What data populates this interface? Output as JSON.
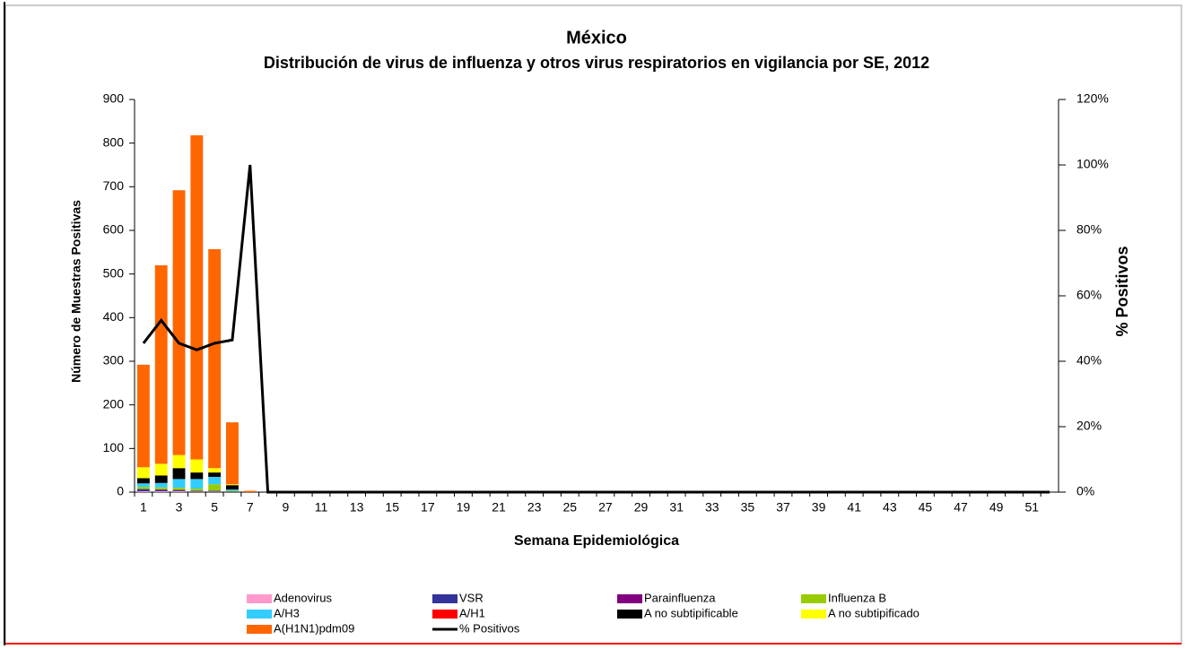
{
  "chart_data": {
    "type": "bar",
    "title": "México",
    "subtitle": "Distribución de virus de influenza y otros virus respiratorios en vigilancia por SE, 2012",
    "x_label": "Semana Epidemiológica",
    "y_label": "Número de Muestras Positivas",
    "y2_label": "% Positivos",
    "stacked": true,
    "legend": "bottom",
    "categories": [
      "1",
      null,
      "3",
      null,
      "5",
      null,
      "7",
      null,
      "9",
      null,
      "11",
      null,
      "13",
      null,
      "15",
      null,
      "17",
      null,
      "19",
      null,
      "21",
      null,
      "23",
      null,
      "25",
      null,
      "27",
      null,
      "29",
      null,
      "31",
      null,
      "33",
      null,
      "35",
      null,
      "37",
      null,
      "39",
      null,
      "41",
      null,
      "43",
      null,
      "45",
      null,
      "47",
      null,
      "49",
      null,
      "51",
      null
    ],
    "ylim": [
      0,
      900
    ],
    "yticks": [
      0,
      100,
      200,
      300,
      400,
      500,
      600,
      700,
      800,
      900
    ],
    "y2lim": [
      0,
      120
    ],
    "y2ticks": [
      {
        "value": 0,
        "label": "0%"
      },
      {
        "value": 20,
        "label": "20%"
      },
      {
        "value": 40,
        "label": "40%"
      },
      {
        "value": 60,
        "label": "60%"
      },
      {
        "value": 80,
        "label": "80%"
      },
      {
        "value": 100,
        "label": "100%"
      },
      {
        "value": 120,
        "label": "120%"
      }
    ],
    "series": [
      {
        "name": "Adenovirus",
        "color": "#ff99cc",
        "values": [
          2,
          2,
          2,
          1,
          1,
          0,
          0,
          0,
          0,
          0,
          0,
          0,
          0,
          0,
          0,
          0,
          0,
          0,
          0,
          0,
          0,
          0,
          0,
          0,
          0,
          0,
          0,
          0,
          0,
          0,
          0,
          0,
          0,
          0,
          0,
          0,
          0,
          0,
          0,
          0,
          0,
          0,
          0,
          0,
          0,
          0,
          0,
          0,
          0,
          0,
          0,
          0
        ]
      },
      {
        "name": "VSR",
        "color": "#333399",
        "values": [
          5,
          3,
          2,
          2,
          2,
          1,
          0,
          0,
          0,
          0,
          0,
          0,
          0,
          0,
          0,
          0,
          0,
          0,
          0,
          0,
          0,
          0,
          0,
          0,
          0,
          0,
          0,
          0,
          0,
          0,
          0,
          0,
          0,
          0,
          0,
          0,
          0,
          0,
          0,
          0,
          0,
          0,
          0,
          0,
          0,
          0,
          0,
          0,
          0,
          0,
          0,
          0
        ]
      },
      {
        "name": "Parainfluenza",
        "color": "#800080",
        "values": [
          0,
          1,
          1,
          0,
          0,
          0,
          0,
          0,
          0,
          0,
          0,
          0,
          0,
          0,
          0,
          0,
          0,
          0,
          0,
          0,
          0,
          0,
          0,
          0,
          0,
          0,
          0,
          0,
          0,
          0,
          0,
          0,
          0,
          0,
          0,
          0,
          0,
          0,
          0,
          0,
          0,
          0,
          0,
          0,
          0,
          0,
          0,
          0,
          0,
          0,
          0,
          0
        ]
      },
      {
        "name": "Influenza  B",
        "color": "#99cc00",
        "values": [
          5,
          5,
          5,
          5,
          15,
          2,
          0,
          0,
          0,
          0,
          0,
          0,
          0,
          0,
          0,
          0,
          0,
          0,
          0,
          0,
          0,
          0,
          0,
          0,
          0,
          0,
          0,
          0,
          0,
          0,
          0,
          0,
          0,
          0,
          0,
          0,
          0,
          0,
          0,
          0,
          0,
          0,
          0,
          0,
          0,
          0,
          0,
          0,
          0,
          0,
          0,
          0
        ]
      },
      {
        "name": "A/H3",
        "color": "#33ccff",
        "values": [
          8,
          10,
          20,
          22,
          17,
          3,
          0,
          0,
          0,
          0,
          0,
          0,
          0,
          0,
          0,
          0,
          0,
          0,
          0,
          0,
          0,
          0,
          0,
          0,
          0,
          0,
          0,
          0,
          0,
          0,
          0,
          0,
          0,
          0,
          0,
          0,
          0,
          0,
          0,
          0,
          0,
          0,
          0,
          0,
          0,
          0,
          0,
          0,
          0,
          0,
          0,
          0
        ]
      },
      {
        "name": "A/H1",
        "color": "#ff0000",
        "values": [
          0,
          0,
          0,
          0,
          0,
          0,
          0,
          0,
          0,
          0,
          0,
          0,
          0,
          0,
          0,
          0,
          0,
          0,
          0,
          0,
          0,
          0,
          0,
          0,
          0,
          0,
          0,
          0,
          0,
          0,
          0,
          0,
          0,
          0,
          0,
          0,
          0,
          0,
          0,
          0,
          0,
          0,
          0,
          0,
          0,
          0,
          0,
          0,
          0,
          0,
          0,
          0
        ]
      },
      {
        "name": "A no subtipificable",
        "color": "#000000",
        "values": [
          12,
          17,
          25,
          15,
          10,
          10,
          0,
          0,
          0,
          0,
          0,
          0,
          0,
          0,
          0,
          0,
          0,
          0,
          0,
          0,
          0,
          0,
          0,
          0,
          0,
          0,
          0,
          0,
          0,
          0,
          0,
          0,
          0,
          0,
          0,
          0,
          0,
          0,
          0,
          0,
          0,
          0,
          0,
          0,
          0,
          0,
          0,
          0,
          0,
          0,
          0,
          0
        ]
      },
      {
        "name": "A no subtipificado",
        "color": "#ffff00",
        "values": [
          25,
          27,
          30,
          30,
          10,
          2,
          0,
          0,
          0,
          0,
          0,
          0,
          0,
          0,
          0,
          0,
          0,
          0,
          0,
          0,
          0,
          0,
          0,
          0,
          0,
          0,
          0,
          0,
          0,
          0,
          0,
          0,
          0,
          0,
          0,
          0,
          0,
          0,
          0,
          0,
          0,
          0,
          0,
          0,
          0,
          0,
          0,
          0,
          0,
          0,
          0,
          0
        ]
      },
      {
        "name": "A(H1N1)pdm09",
        "color": "#ff6600",
        "values": [
          235,
          455,
          607,
          743,
          502,
          142,
          3,
          0,
          0,
          0,
          0,
          0,
          0,
          0,
          0,
          0,
          0,
          0,
          0,
          0,
          0,
          0,
          0,
          0,
          0,
          0,
          0,
          0,
          0,
          0,
          0,
          0,
          0,
          0,
          0,
          0,
          0,
          0,
          0,
          0,
          0,
          0,
          0,
          0,
          0,
          0,
          0,
          0,
          0,
          0,
          0,
          0
        ]
      },
      {
        "name": "% Positivos",
        "color": "#000000",
        "type": "line",
        "axis": "y2",
        "values": [
          45.5,
          52.5,
          45.5,
          43.5,
          45.5,
          46.5,
          100,
          0,
          0,
          0,
          0,
          0,
          0,
          0,
          0,
          0,
          0,
          0,
          0,
          0,
          0,
          0,
          0,
          0,
          0,
          0,
          0,
          0,
          0,
          0,
          0,
          0,
          0,
          0,
          0,
          0,
          0,
          0,
          0,
          0,
          0,
          0,
          0,
          0,
          0,
          0,
          0,
          0,
          0,
          0,
          0,
          0
        ]
      }
    ]
  }
}
